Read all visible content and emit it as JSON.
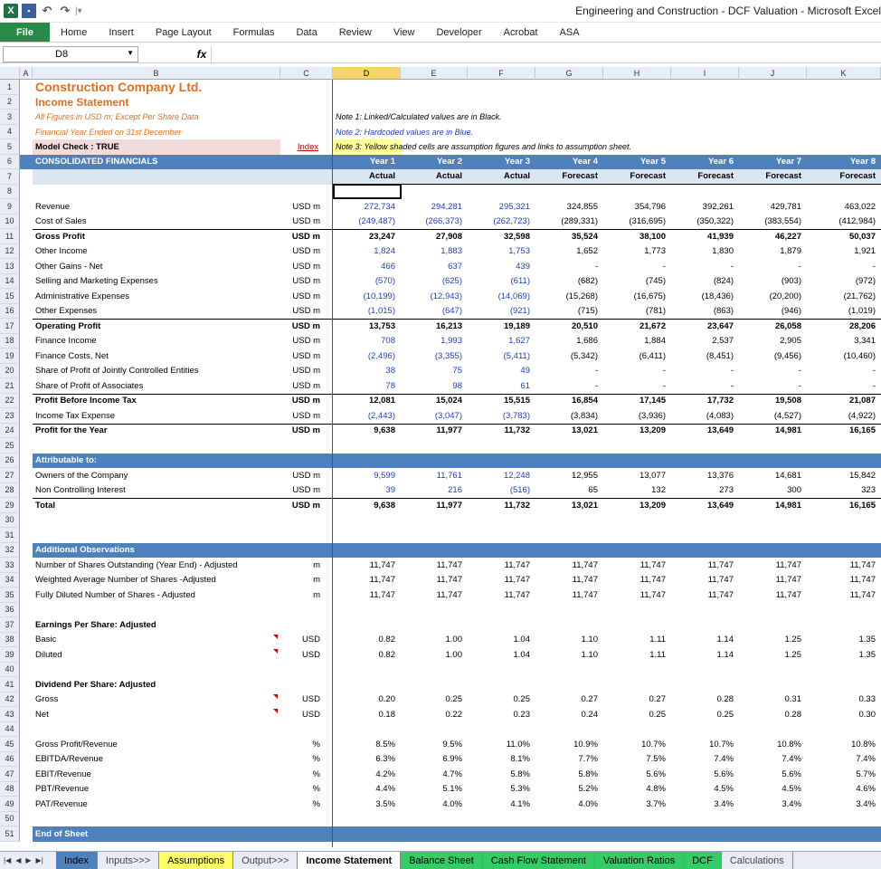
{
  "window": {
    "title": "Engineering and Construction - DCF Valuation  -  Microsoft Excel"
  },
  "ribbon": {
    "file": "File",
    "tabs": [
      "Home",
      "Insert",
      "Page Layout",
      "Formulas",
      "Data",
      "Review",
      "View",
      "Developer",
      "Acrobat",
      "ASA"
    ]
  },
  "formula_bar": {
    "name_box": "D8",
    "fx": "fx",
    "content": ""
  },
  "columns": [
    "A",
    "B",
    "C",
    "D",
    "E",
    "F",
    "G",
    "H",
    "I",
    "J",
    "K"
  ],
  "sheet": {
    "company": "Construction Company Ltd.",
    "statement": "Income Statement",
    "note_figures": "All Figures in USD m; Except Per Share Data",
    "note_year": "Financial Year Ended on 31st December",
    "model_check": "Model Check : TRUE",
    "index_link": "Index",
    "note1": "Note 1: Linked/Calculated values are in Black.",
    "note2": "Note 2: Hardcoded values are in Blue.",
    "note3": "Note 3: Yellow shaded cells are assumption figures and links to assumption sheet.",
    "consolidated": "CONSOLIDATED FINANCIALS",
    "years": [
      "Year 1",
      "Year 2",
      "Year 3",
      "Year 4",
      "Year 5",
      "Year 6",
      "Year 7",
      "Year 8"
    ],
    "status": [
      "Actual",
      "Actual",
      "Actual",
      "Forecast",
      "Forecast",
      "Forecast",
      "Forecast",
      "Forecast"
    ],
    "attributable": "Attributable to:",
    "observations": "Additional Observations",
    "eps_header": "Earnings Per Share: Adjusted",
    "dps_header": "Dividend Per Share: Adjusted",
    "end": "End of Sheet"
  },
  "rows": [
    {
      "r": 9,
      "label": "Revenue",
      "unit": "USD m",
      "vals": [
        "272,734",
        "294,281",
        "295,321",
        "324,855",
        "354,796",
        "392,261",
        "429,781",
        "463,022"
      ],
      "blue": 3
    },
    {
      "r": 10,
      "label": "Cost of Sales",
      "unit": "USD m",
      "vals": [
        "(249,487)",
        "(266,373)",
        "(262,723)",
        "(289,331)",
        "(316,695)",
        "(350,322)",
        "(383,554)",
        "(412,984)"
      ],
      "blue": 3
    },
    {
      "r": 11,
      "label": "Gross Profit",
      "unit": "USD m",
      "vals": [
        "23,247",
        "27,908",
        "32,598",
        "35,524",
        "38,100",
        "41,939",
        "46,227",
        "50,037"
      ],
      "bold": true,
      "top": true
    },
    {
      "r": 12,
      "label": "Other Income",
      "unit": "USD m",
      "vals": [
        "1,824",
        "1,883",
        "1,753",
        "1,652",
        "1,773",
        "1,830",
        "1,879",
        "1,921"
      ],
      "blue": 3
    },
    {
      "r": 13,
      "label": "Other Gains - Net",
      "unit": "USD m",
      "vals": [
        "466",
        "637",
        "439",
        "-",
        "-",
        "-",
        "-",
        "-"
      ],
      "blue": 3
    },
    {
      "r": 14,
      "label": "Selling and Marketing Expenses",
      "unit": "USD m",
      "vals": [
        "(570)",
        "(625)",
        "(611)",
        "(682)",
        "(745)",
        "(824)",
        "(903)",
        "(972)"
      ],
      "blue": 3
    },
    {
      "r": 15,
      "label": "Administrative Expenses",
      "unit": "USD m",
      "vals": [
        "(10,199)",
        "(12,943)",
        "(14,069)",
        "(15,268)",
        "(16,675)",
        "(18,436)",
        "(20,200)",
        "(21,762)"
      ],
      "blue": 3
    },
    {
      "r": 16,
      "label": "Other Expenses",
      "unit": "USD m",
      "vals": [
        "(1,015)",
        "(647)",
        "(921)",
        "(715)",
        "(781)",
        "(863)",
        "(946)",
        "(1,019)"
      ],
      "blue": 3
    },
    {
      "r": 17,
      "label": "Operating Profit",
      "unit": "USD m",
      "vals": [
        "13,753",
        "16,213",
        "19,189",
        "20,510",
        "21,672",
        "23,647",
        "26,058",
        "28,206"
      ],
      "bold": true,
      "top": true
    },
    {
      "r": 18,
      "label": "Finance Income",
      "unit": "USD m",
      "vals": [
        "708",
        "1,993",
        "1,627",
        "1,686",
        "1,884",
        "2,537",
        "2,905",
        "3,341"
      ],
      "blue": 3
    },
    {
      "r": 19,
      "label": "Finance Costs, Net",
      "unit": "USD m",
      "vals": [
        "(2,496)",
        "(3,355)",
        "(5,411)",
        "(5,342)",
        "(6,411)",
        "(8,451)",
        "(9,456)",
        "(10,460)"
      ],
      "blue": 3
    },
    {
      "r": 20,
      "label": "Share of Profit of Jointly Controlled Entities",
      "unit": "USD m",
      "vals": [
        "38",
        "75",
        "49",
        "-",
        "-",
        "-",
        "-",
        "-"
      ],
      "blue": 3
    },
    {
      "r": 21,
      "label": "Share of Profit of Associates",
      "unit": "USD m",
      "vals": [
        "78",
        "98",
        "61",
        "-",
        "-",
        "-",
        "-",
        "-"
      ],
      "blue": 3
    },
    {
      "r": 22,
      "label": "Profit Before Income Tax",
      "unit": "USD m",
      "vals": [
        "12,081",
        "15,024",
        "15,515",
        "16,854",
        "17,145",
        "17,732",
        "19,508",
        "21,087"
      ],
      "bold": true,
      "top": true
    },
    {
      "r": 23,
      "label": "Income Tax Expense",
      "unit": "USD m",
      "vals": [
        "(2,443)",
        "(3,047)",
        "(3,783)",
        "(3,834)",
        "(3,936)",
        "(4,083)",
        "(4,527)",
        "(4,922)"
      ],
      "blue": 3
    },
    {
      "r": 24,
      "label": "Profit for the Year",
      "unit": "USD m",
      "vals": [
        "9,638",
        "11,977",
        "11,732",
        "13,021",
        "13,209",
        "13,649",
        "14,981",
        "16,165"
      ],
      "bold": true,
      "top": true
    },
    {
      "r": 27,
      "label": "Owners of the Company",
      "unit": "USD m",
      "vals": [
        "9,599",
        "11,761",
        "12,248",
        "12,955",
        "13,077",
        "13,376",
        "14,681",
        "15,842"
      ],
      "blue": 3
    },
    {
      "r": 28,
      "label": "Non Controlling Interest",
      "unit": "USD m",
      "vals": [
        "39",
        "216",
        "(516)",
        "65",
        "132",
        "273",
        "300",
        "323"
      ],
      "blue": 3
    },
    {
      "r": 29,
      "label": "Total",
      "unit": "USD m",
      "vals": [
        "9,638",
        "11,977",
        "11,732",
        "13,021",
        "13,209",
        "13,649",
        "14,981",
        "16,165"
      ],
      "bold": true,
      "top": true
    },
    {
      "r": 33,
      "label": "Number of Shares Outstanding (Year End) - Adjusted",
      "unit": "m",
      "vals": [
        "11,747",
        "11,747",
        "11,747",
        "11,747",
        "11,747",
        "11,747",
        "11,747",
        "11,747"
      ]
    },
    {
      "r": 34,
      "label": "Weighted Average Number of Shares -Adjusted",
      "unit": "m",
      "vals": [
        "11,747",
        "11,747",
        "11,747",
        "11,747",
        "11,747",
        "11,747",
        "11,747",
        "11,747"
      ]
    },
    {
      "r": 35,
      "label": "Fully Diluted Number of Shares - Adjusted",
      "unit": "m",
      "vals": [
        "11,747",
        "11,747",
        "11,747",
        "11,747",
        "11,747",
        "11,747",
        "11,747",
        "11,747"
      ]
    },
    {
      "r": 38,
      "label": "Basic",
      "unit": "USD",
      "vals": [
        "0.82",
        "1.00",
        "1.04",
        "1.10",
        "1.11",
        "1.14",
        "1.25",
        "1.35"
      ],
      "mark": true
    },
    {
      "r": 39,
      "label": "Diluted",
      "unit": "USD",
      "vals": [
        "0.82",
        "1.00",
        "1.04",
        "1.10",
        "1.11",
        "1.14",
        "1.25",
        "1.35"
      ],
      "mark": true
    },
    {
      "r": 42,
      "label": "Gross",
      "unit": "USD",
      "vals": [
        "0.20",
        "0.25",
        "0.25",
        "0.27",
        "0.27",
        "0.28",
        "0.31",
        "0.33"
      ],
      "mark": true
    },
    {
      "r": 43,
      "label": "Net",
      "unit": "USD",
      "vals": [
        "0.18",
        "0.22",
        "0.23",
        "0.24",
        "0.25",
        "0.25",
        "0.28",
        "0.30"
      ],
      "mark": true
    },
    {
      "r": 45,
      "label": "Gross Profit/Revenue",
      "unit": "%",
      "vals": [
        "8.5%",
        "9.5%",
        "11.0%",
        "10.9%",
        "10.7%",
        "10.7%",
        "10.8%",
        "10.8%"
      ]
    },
    {
      "r": 46,
      "label": "EBITDA/Revenue",
      "unit": "%",
      "vals": [
        "6.3%",
        "6.9%",
        "8.1%",
        "7.7%",
        "7.5%",
        "7.4%",
        "7.4%",
        "7.4%"
      ]
    },
    {
      "r": 47,
      "label": "EBIT/Revenue",
      "unit": "%",
      "vals": [
        "4.2%",
        "4.7%",
        "5.8%",
        "5.8%",
        "5.6%",
        "5.6%",
        "5.6%",
        "5.7%"
      ]
    },
    {
      "r": 48,
      "label": "PBT/Revenue",
      "unit": "%",
      "vals": [
        "4.4%",
        "5.1%",
        "5.3%",
        "5.2%",
        "4.8%",
        "4.5%",
        "4.5%",
        "4.6%"
      ]
    },
    {
      "r": 49,
      "label": "PAT/Revenue",
      "unit": "%",
      "vals": [
        "3.5%",
        "4.0%",
        "4.1%",
        "4.0%",
        "3.7%",
        "3.4%",
        "3.4%",
        "3.4%"
      ]
    }
  ],
  "sheet_tabs": [
    {
      "label": "Index",
      "style": "blue-t"
    },
    {
      "label": "Inputs>>>",
      "style": "plain"
    },
    {
      "label": "Assumptions",
      "style": "yellow-t"
    },
    {
      "label": "Output>>>",
      "style": "plain"
    },
    {
      "label": "Income Statement",
      "style": "active"
    },
    {
      "label": "Balance Sheet",
      "style": "green-t"
    },
    {
      "label": "Cash Flow Statement",
      "style": "green-t"
    },
    {
      "label": "Valuation Ratios",
      "style": "green-t"
    },
    {
      "label": "DCF",
      "style": "green-t"
    },
    {
      "label": "Calculations",
      "style": "plain"
    }
  ],
  "nav_glyphs": [
    "|◀",
    "◀",
    "▶",
    "▶|"
  ]
}
